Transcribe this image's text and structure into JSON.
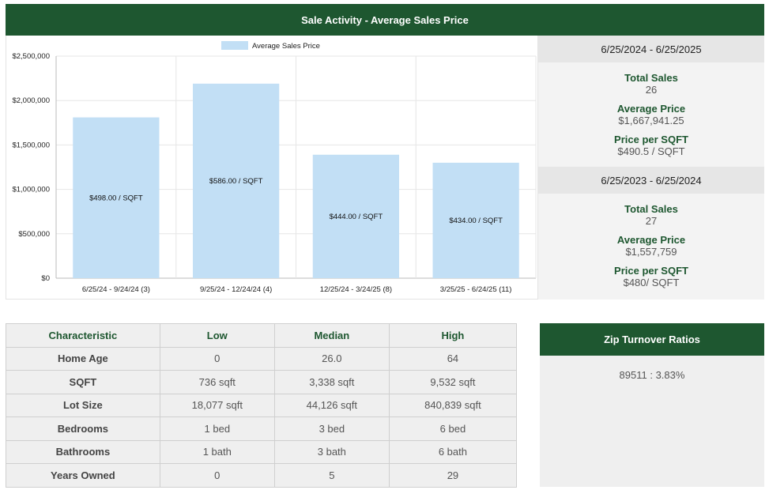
{
  "header": {
    "title": "Sale Activity - Average Sales Price"
  },
  "chart_data": {
    "type": "bar",
    "legend": "Average Sales Price",
    "legend_position": "top-center",
    "categories": [
      "6/25/24 - 9/24/24 (3)",
      "9/25/24 - 12/24/24 (4)",
      "12/25/24 - 3/24/25 (8)",
      "3/25/25 - 6/24/25 (11)"
    ],
    "values": [
      1810000,
      2190000,
      1390000,
      1300000
    ],
    "bar_labels": [
      "$498.00 / SQFT",
      "$586.00 / SQFT",
      "$444.00 / SQFT",
      "$434.00 / SQFT"
    ],
    "y_ticks": [
      "$0",
      "$500,000",
      "$1,000,000",
      "$1,500,000",
      "$2,000,000",
      "$2,500,000"
    ],
    "ylim": [
      0,
      2500000
    ],
    "grid": true,
    "bar_color": "#c2dff5"
  },
  "summary": {
    "periods": [
      {
        "range": "6/25/2024 - 6/25/2025",
        "stats": [
          {
            "label": "Total Sales",
            "value": "26"
          },
          {
            "label": "Average Price",
            "value": "$1,667,941.25"
          },
          {
            "label": "Price per SQFT",
            "value": "$490.5 / SQFT"
          }
        ]
      },
      {
        "range": "6/25/2023 - 6/25/2024",
        "stats": [
          {
            "label": "Total Sales",
            "value": "27"
          },
          {
            "label": "Average Price",
            "value": "$1,557,759"
          },
          {
            "label": "Price per SQFT",
            "value": "$480/ SQFT"
          }
        ]
      }
    ]
  },
  "characteristics": {
    "headers": [
      "Characteristic",
      "Low",
      "Median",
      "High"
    ],
    "rows": [
      [
        "Home Age",
        "0",
        "26.0",
        "64"
      ],
      [
        "SQFT",
        "736 sqft",
        "3,338 sqft",
        "9,532 sqft"
      ],
      [
        "Lot Size",
        "18,077 sqft",
        "44,126 sqft",
        "840,839 sqft"
      ],
      [
        "Bedrooms",
        "1 bed",
        "3 bed",
        "6 bed"
      ],
      [
        "Bathrooms",
        "1 bath",
        "3 bath",
        "6 bath"
      ],
      [
        "Years Owned",
        "0",
        "5",
        "29"
      ]
    ]
  },
  "zip": {
    "title": "Zip Turnover Ratios",
    "value": "89511 : 3.83%"
  }
}
